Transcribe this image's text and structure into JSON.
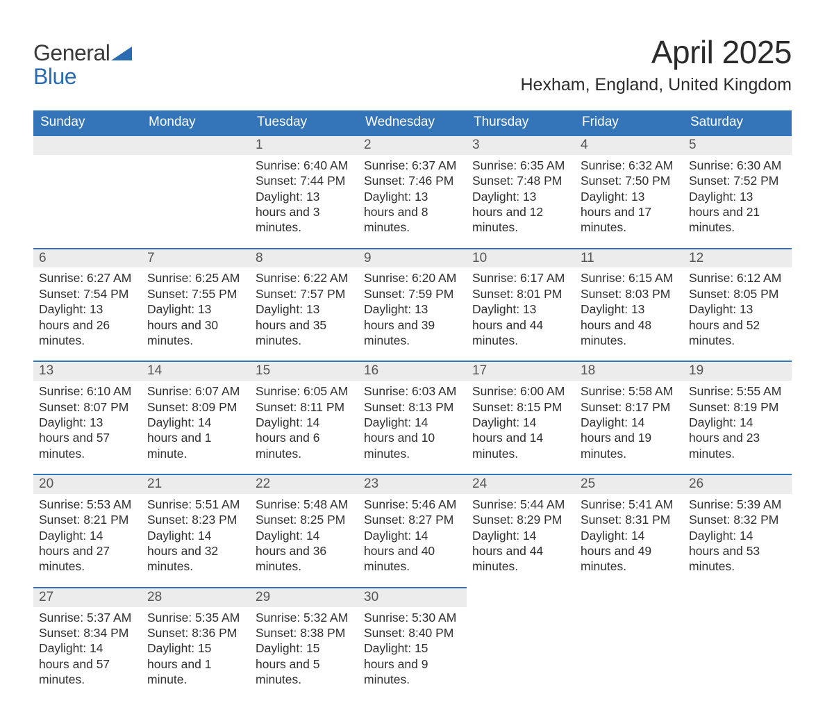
{
  "logo": {
    "line1": "General",
    "line2": "Blue",
    "mark_color": "#2b6bb2"
  },
  "title": "April 2025",
  "subtitle": "Hexham, England, United Kingdom",
  "colors": {
    "header_bg": "#3375b8",
    "header_text": "#ffffff",
    "daynum_bg": "#ececec",
    "daynum_text": "#555555",
    "row_border": "#3375b8",
    "body_text": "#303030",
    "page_bg": "#ffffff"
  },
  "day_headers": [
    "Sunday",
    "Monday",
    "Tuesday",
    "Wednesday",
    "Thursday",
    "Friday",
    "Saturday"
  ],
  "weeks": [
    [
      null,
      null,
      {
        "n": "1",
        "sunrise": "6:40 AM",
        "sunset": "7:44 PM",
        "daylight": "13 hours and 3 minutes."
      },
      {
        "n": "2",
        "sunrise": "6:37 AM",
        "sunset": "7:46 PM",
        "daylight": "13 hours and 8 minutes."
      },
      {
        "n": "3",
        "sunrise": "6:35 AM",
        "sunset": "7:48 PM",
        "daylight": "13 hours and 12 minutes."
      },
      {
        "n": "4",
        "sunrise": "6:32 AM",
        "sunset": "7:50 PM",
        "daylight": "13 hours and 17 minutes."
      },
      {
        "n": "5",
        "sunrise": "6:30 AM",
        "sunset": "7:52 PM",
        "daylight": "13 hours and 21 minutes."
      }
    ],
    [
      {
        "n": "6",
        "sunrise": "6:27 AM",
        "sunset": "7:54 PM",
        "daylight": "13 hours and 26 minutes."
      },
      {
        "n": "7",
        "sunrise": "6:25 AM",
        "sunset": "7:55 PM",
        "daylight": "13 hours and 30 minutes."
      },
      {
        "n": "8",
        "sunrise": "6:22 AM",
        "sunset": "7:57 PM",
        "daylight": "13 hours and 35 minutes."
      },
      {
        "n": "9",
        "sunrise": "6:20 AM",
        "sunset": "7:59 PM",
        "daylight": "13 hours and 39 minutes."
      },
      {
        "n": "10",
        "sunrise": "6:17 AM",
        "sunset": "8:01 PM",
        "daylight": "13 hours and 44 minutes."
      },
      {
        "n": "11",
        "sunrise": "6:15 AM",
        "sunset": "8:03 PM",
        "daylight": "13 hours and 48 minutes."
      },
      {
        "n": "12",
        "sunrise": "6:12 AM",
        "sunset": "8:05 PM",
        "daylight": "13 hours and 52 minutes."
      }
    ],
    [
      {
        "n": "13",
        "sunrise": "6:10 AM",
        "sunset": "8:07 PM",
        "daylight": "13 hours and 57 minutes."
      },
      {
        "n": "14",
        "sunrise": "6:07 AM",
        "sunset": "8:09 PM",
        "daylight": "14 hours and 1 minute."
      },
      {
        "n": "15",
        "sunrise": "6:05 AM",
        "sunset": "8:11 PM",
        "daylight": "14 hours and 6 minutes."
      },
      {
        "n": "16",
        "sunrise": "6:03 AM",
        "sunset": "8:13 PM",
        "daylight": "14 hours and 10 minutes."
      },
      {
        "n": "17",
        "sunrise": "6:00 AM",
        "sunset": "8:15 PM",
        "daylight": "14 hours and 14 minutes."
      },
      {
        "n": "18",
        "sunrise": "5:58 AM",
        "sunset": "8:17 PM",
        "daylight": "14 hours and 19 minutes."
      },
      {
        "n": "19",
        "sunrise": "5:55 AM",
        "sunset": "8:19 PM",
        "daylight": "14 hours and 23 minutes."
      }
    ],
    [
      {
        "n": "20",
        "sunrise": "5:53 AM",
        "sunset": "8:21 PM",
        "daylight": "14 hours and 27 minutes."
      },
      {
        "n": "21",
        "sunrise": "5:51 AM",
        "sunset": "8:23 PM",
        "daylight": "14 hours and 32 minutes."
      },
      {
        "n": "22",
        "sunrise": "5:48 AM",
        "sunset": "8:25 PM",
        "daylight": "14 hours and 36 minutes."
      },
      {
        "n": "23",
        "sunrise": "5:46 AM",
        "sunset": "8:27 PM",
        "daylight": "14 hours and 40 minutes."
      },
      {
        "n": "24",
        "sunrise": "5:44 AM",
        "sunset": "8:29 PM",
        "daylight": "14 hours and 44 minutes."
      },
      {
        "n": "25",
        "sunrise": "5:41 AM",
        "sunset": "8:31 PM",
        "daylight": "14 hours and 49 minutes."
      },
      {
        "n": "26",
        "sunrise": "5:39 AM",
        "sunset": "8:32 PM",
        "daylight": "14 hours and 53 minutes."
      }
    ],
    [
      {
        "n": "27",
        "sunrise": "5:37 AM",
        "sunset": "8:34 PM",
        "daylight": "14 hours and 57 minutes."
      },
      {
        "n": "28",
        "sunrise": "5:35 AM",
        "sunset": "8:36 PM",
        "daylight": "15 hours and 1 minute."
      },
      {
        "n": "29",
        "sunrise": "5:32 AM",
        "sunset": "8:38 PM",
        "daylight": "15 hours and 5 minutes."
      },
      {
        "n": "30",
        "sunrise": "5:30 AM",
        "sunset": "8:40 PM",
        "daylight": "15 hours and 9 minutes."
      },
      null,
      null,
      null
    ]
  ],
  "labels": {
    "sunrise": "Sunrise: ",
    "sunset": "Sunset: ",
    "daylight": "Daylight: "
  }
}
